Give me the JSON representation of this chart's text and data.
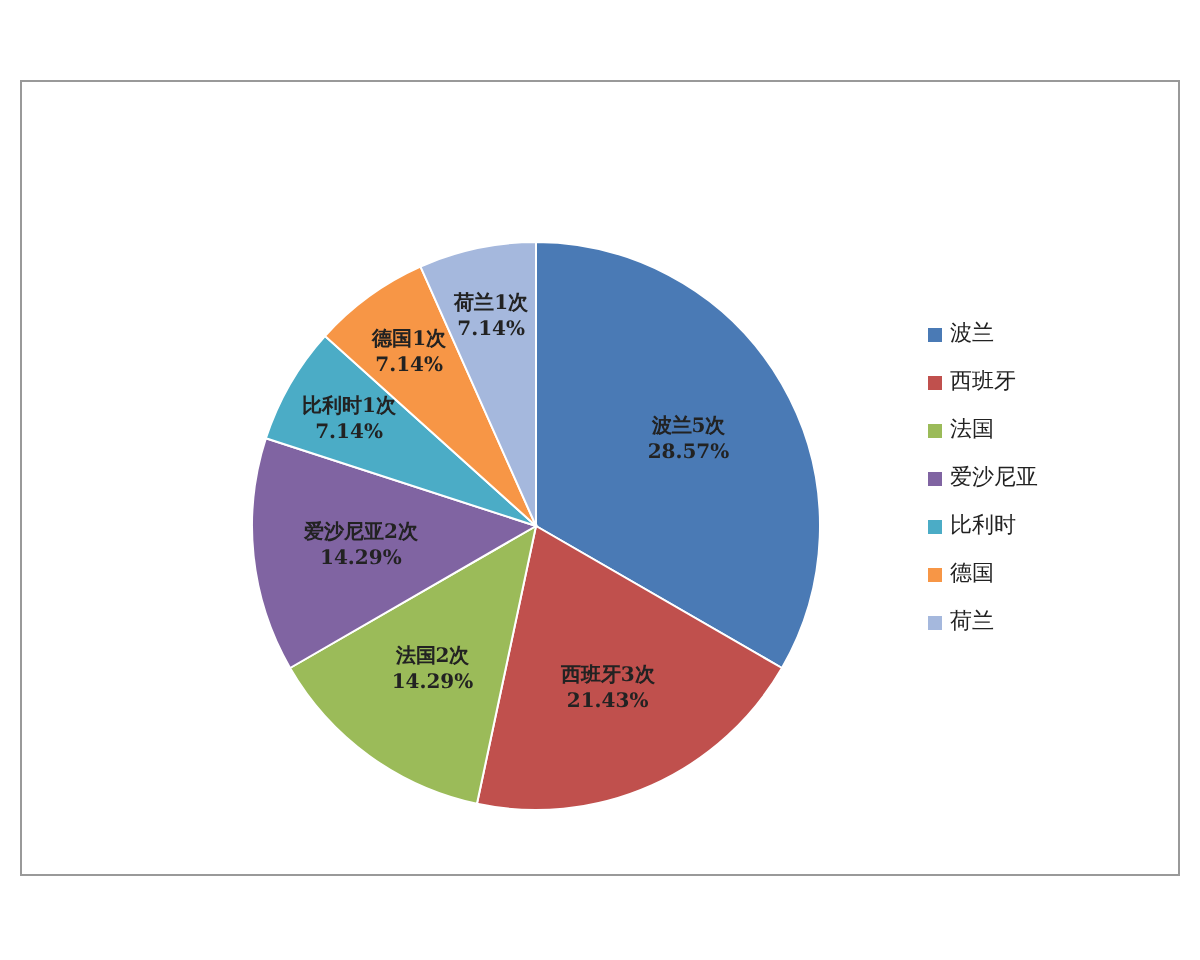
{
  "chart_data": {
    "type": "pie",
    "categories": [
      "波兰",
      "西班牙",
      "法国",
      "爱沙尼亚",
      "比利时",
      "德国",
      "荷兰"
    ],
    "values": [
      5,
      3,
      2,
      2,
      1,
      1,
      1
    ],
    "value_labels": [
      "波兰5次\n28.57%",
      "西班牙3次\n21.43%",
      "法国2次\n14.29%",
      "爱沙尼亚2次\n14.29%",
      "比利时1次\n7.14%",
      "德国1次\n7.14%",
      "荷兰1次\n7.14%"
    ],
    "colors": [
      "#4a7ab5",
      "#c0504d",
      "#9bbb59",
      "#8064a2",
      "#4bacc6",
      "#f79646",
      "#a5b8dd"
    ],
    "legend": "right"
  }
}
